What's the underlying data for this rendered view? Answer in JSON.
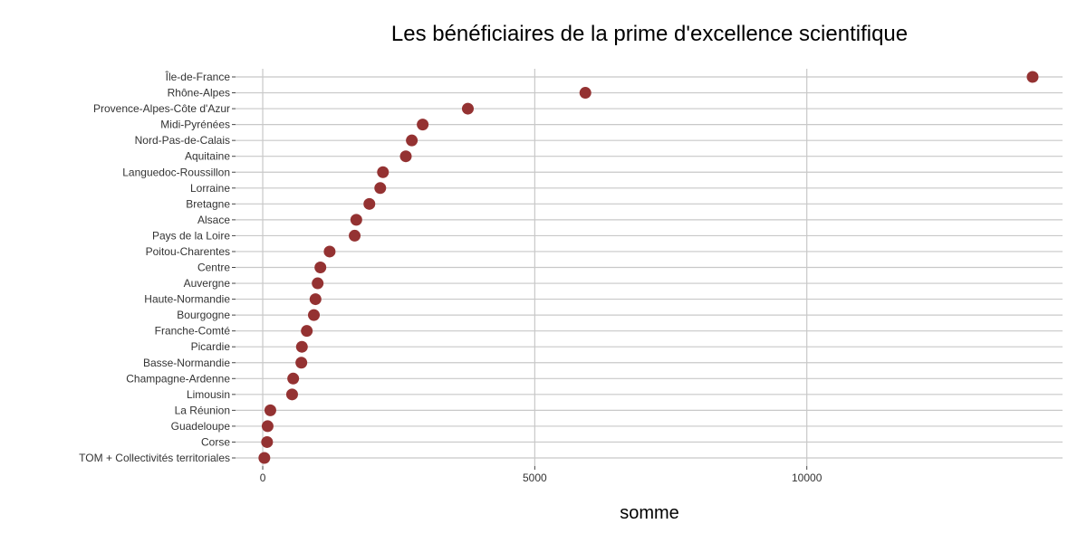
{
  "chart_data": {
    "type": "scatter",
    "title": "Les bénéficiaires de la prime d'excellence scientifique",
    "xlabel": "somme",
    "ylabel": "",
    "xlim": [
      -500,
      14700
    ],
    "x_ticks": [
      0,
      5000,
      10000
    ],
    "x_tick_labels": [
      "0",
      "5000",
      "10000"
    ],
    "grid": true,
    "legend": "none",
    "point_color": "#943232",
    "grid_color": "#c8c8c8",
    "categories": [
      "Île-de-France",
      "Rhône-Alpes",
      "Provence-Alpes-Côte d'Azur",
      "Midi-Pyrénées",
      "Nord-Pas-de-Calais",
      "Aquitaine",
      "Languedoc-Roussillon",
      "Lorraine",
      "Bretagne",
      "Alsace",
      "Pays de la Loire",
      "Poitou-Charentes",
      "Centre",
      "Auvergne",
      "Haute-Normandie",
      "Bourgogne",
      "Franche-Comté",
      "Picardie",
      "Basse-Normandie",
      "Champagne-Ardenne",
      "Limousin",
      "La Réunion",
      "Guadeloupe",
      "Corse",
      "TOM + Collectivités territoriales"
    ],
    "values": [
      14150,
      5930,
      3770,
      2940,
      2740,
      2630,
      2210,
      2160,
      1960,
      1720,
      1690,
      1230,
      1060,
      1010,
      970,
      940,
      810,
      720,
      710,
      560,
      540,
      140,
      90,
      80,
      30
    ]
  }
}
